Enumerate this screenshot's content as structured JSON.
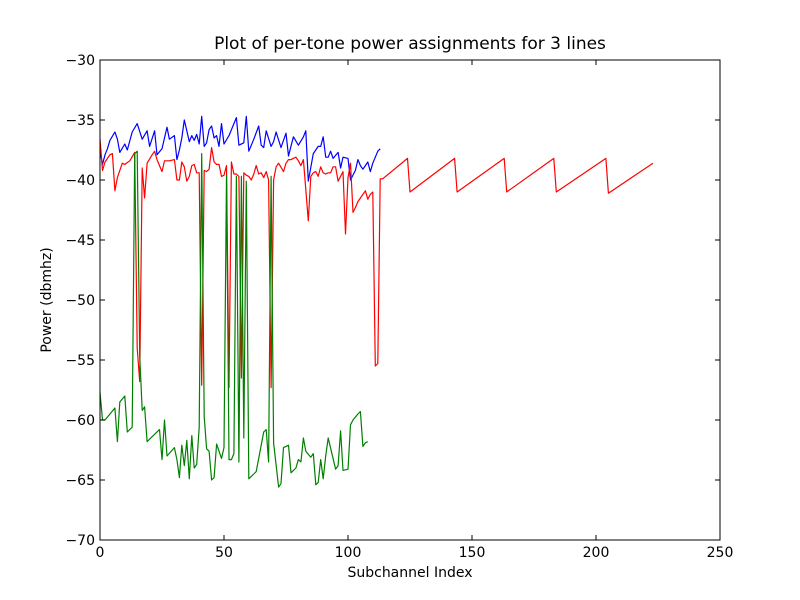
{
  "chart_data": {
    "type": "line",
    "title": "Plot of per-tone power assignments for 3 lines",
    "xlabel": "Subchannel Index",
    "ylabel": "Power (dbmhz)",
    "xlim": [
      0,
      250
    ],
    "ylim": [
      -70,
      -30
    ],
    "xticks": [
      0,
      50,
      100,
      150,
      200,
      250
    ],
    "xtick_labels": [
      "0",
      "50",
      "100",
      "150",
      "200",
      "250"
    ],
    "yticks": [
      -30,
      -35,
      -40,
      -45,
      -50,
      -55,
      -60,
      -65,
      -70
    ],
    "ytick_labels": [
      "−30",
      "−35",
      "−40",
      "−45",
      "−50",
      "−55",
      "−60",
      "−65",
      "−70"
    ],
    "grid": false,
    "legend": false,
    "series": [
      {
        "color": "#0000ff",
        "points": [
          [
            0,
            -37.6
          ],
          [
            1,
            -38.7
          ],
          [
            2,
            -37.9
          ],
          [
            3,
            -37.4
          ],
          [
            4,
            -36.7
          ],
          [
            6,
            -36
          ],
          [
            7,
            -36.6
          ],
          [
            8,
            -37.7
          ],
          [
            10,
            -37
          ],
          [
            11,
            -37.5
          ],
          [
            13,
            -36
          ],
          [
            15,
            -35.3
          ],
          [
            17,
            -36.6
          ],
          [
            19,
            -35.9
          ],
          [
            20,
            -37.2
          ],
          [
            22,
            -35.9
          ],
          [
            23,
            -37.9
          ],
          [
            25,
            -37.4
          ],
          [
            27,
            -35.6
          ],
          [
            28,
            -36.6
          ],
          [
            30,
            -36.3
          ],
          [
            31,
            -38.3
          ],
          [
            32,
            -37.5
          ],
          [
            33,
            -36.5
          ],
          [
            34,
            -35
          ],
          [
            36,
            -36.8
          ],
          [
            37,
            -36.3
          ],
          [
            38,
            -36.7
          ],
          [
            39,
            -36.2
          ],
          [
            40,
            -37
          ],
          [
            41,
            -34.7
          ],
          [
            42,
            -37.2
          ],
          [
            43,
            -36.9
          ],
          [
            44,
            -35.8
          ],
          [
            45,
            -35.5
          ],
          [
            46,
            -36.5
          ],
          [
            47,
            -36.3
          ],
          [
            48,
            -37.2
          ],
          [
            49,
            -35.3
          ],
          [
            50,
            -37
          ],
          [
            52,
            -36.3
          ],
          [
            55,
            -34.8
          ],
          [
            56,
            -37.1
          ],
          [
            58,
            -36.9
          ],
          [
            59,
            -34.7
          ],
          [
            60,
            -37.6
          ],
          [
            62,
            -36.6
          ],
          [
            64,
            -35.5
          ],
          [
            65,
            -37.1
          ],
          [
            66,
            -37.3
          ],
          [
            67,
            -35.9
          ],
          [
            69,
            -37.2
          ],
          [
            70,
            -36.8
          ],
          [
            71,
            -36
          ],
          [
            73,
            -37.3
          ],
          [
            75,
            -36.1
          ],
          [
            76,
            -38
          ],
          [
            78,
            -36.4
          ],
          [
            80,
            -37.1
          ],
          [
            82,
            -36.4
          ],
          [
            83,
            -35.9
          ],
          [
            84,
            -40.1
          ],
          [
            86,
            -37.8
          ],
          [
            88,
            -37.2
          ],
          [
            89,
            -37.2
          ],
          [
            90,
            -36.4
          ],
          [
            91,
            -38.1
          ],
          [
            92,
            -38.1
          ],
          [
            93,
            -37.6
          ],
          [
            94,
            -38.2
          ],
          [
            96,
            -37.7
          ],
          [
            97,
            -39
          ],
          [
            98,
            -38.1
          ],
          [
            100,
            -38.2
          ],
          [
            101,
            -40
          ],
          [
            103,
            -39.2
          ],
          [
            104,
            -38.3
          ],
          [
            105,
            -38.8
          ],
          [
            106,
            -39.1
          ],
          [
            107,
            -38.8
          ],
          [
            108,
            -38.5
          ],
          [
            109,
            -39.3
          ],
          [
            110,
            -38.6
          ],
          [
            112,
            -37.6
          ],
          [
            113,
            -37.4
          ]
        ]
      },
      {
        "color": "#ff0000",
        "points": [
          [
            0,
            -36.6
          ],
          [
            1,
            -39.2
          ],
          [
            2,
            -38.5
          ],
          [
            4,
            -37.9
          ],
          [
            5,
            -37.8
          ],
          [
            6,
            -40.9
          ],
          [
            7,
            -39.8
          ],
          [
            9,
            -38.6
          ],
          [
            10,
            -38.7
          ],
          [
            12,
            -38.4
          ],
          [
            14,
            -37.7
          ],
          [
            15,
            -54
          ],
          [
            16,
            -56.8
          ],
          [
            17,
            -39
          ],
          [
            18,
            -41.5
          ],
          [
            19,
            -38.6
          ],
          [
            21,
            -37.9
          ],
          [
            22,
            -37.6
          ],
          [
            23,
            -38.3
          ],
          [
            24,
            -38.8
          ],
          [
            25,
            -39.3
          ],
          [
            26,
            -38.4
          ],
          [
            28,
            -38.4
          ],
          [
            30,
            -38.3
          ],
          [
            31,
            -40
          ],
          [
            32,
            -40
          ],
          [
            33,
            -38.5
          ],
          [
            34,
            -38.9
          ],
          [
            35,
            -40.1
          ],
          [
            36,
            -39.7
          ],
          [
            37,
            -38.8
          ],
          [
            38,
            -38.7
          ],
          [
            39,
            -39.4
          ],
          [
            40,
            -39.4
          ],
          [
            41,
            -57.1
          ],
          [
            42,
            -39.2
          ],
          [
            43,
            -39.3
          ],
          [
            44,
            -39.1
          ],
          [
            45,
            -37.3
          ],
          [
            46,
            -38.5
          ],
          [
            47,
            -38.7
          ],
          [
            48,
            -38.7
          ],
          [
            49,
            -39.7
          ],
          [
            50,
            -39.6
          ],
          [
            51,
            -38.8
          ],
          [
            52,
            -57.3
          ],
          [
            53,
            -38.5
          ],
          [
            54,
            -39.5
          ],
          [
            55,
            -39.5
          ],
          [
            56,
            -39.7
          ],
          [
            57,
            -56.5
          ],
          [
            58,
            -39.4
          ],
          [
            59,
            -39.6
          ],
          [
            60,
            -39.7
          ],
          [
            61,
            -40
          ],
          [
            62,
            -39.5
          ],
          [
            63,
            -38.8
          ],
          [
            64,
            -39.5
          ],
          [
            65,
            -39.4
          ],
          [
            66,
            -39.8
          ],
          [
            67,
            -39.3
          ],
          [
            68,
            -40
          ],
          [
            69,
            -57.3
          ],
          [
            70,
            -40
          ],
          [
            71,
            -38.9
          ],
          [
            72,
            -38.6
          ],
          [
            74,
            -39.3
          ],
          [
            75,
            -38.6
          ],
          [
            76,
            -38.3
          ],
          [
            77,
            -38.3
          ],
          [
            79,
            -38.1
          ],
          [
            80,
            -38.4
          ],
          [
            81,
            -38.8
          ],
          [
            82,
            -38.3
          ],
          [
            84,
            -43.4
          ],
          [
            85,
            -39.7
          ],
          [
            86,
            -39.4
          ],
          [
            87,
            -39.3
          ],
          [
            88,
            -39.7
          ],
          [
            89,
            -38.9
          ],
          [
            90,
            -39.4
          ],
          [
            91,
            -39.5
          ],
          [
            92,
            -39.4
          ],
          [
            93,
            -39.4
          ],
          [
            94,
            -38.9
          ],
          [
            95,
            -38.9
          ],
          [
            96,
            -40.1
          ],
          [
            98,
            -39.3
          ],
          [
            99,
            -44.5
          ],
          [
            100,
            -39.8
          ],
          [
            101,
            -38.6
          ],
          [
            102,
            -42.7
          ],
          [
            103,
            -42.3
          ],
          [
            104,
            -41.8
          ],
          [
            106,
            -41.2
          ],
          [
            107,
            -40.9
          ],
          [
            108,
            -41.6
          ],
          [
            109,
            -41.2
          ],
          [
            110,
            -41
          ],
          [
            111,
            -55.5
          ],
          [
            112,
            -55.3
          ],
          [
            113,
            -39.9
          ],
          [
            114,
            -39.9
          ],
          [
            124,
            -38.2
          ],
          [
            125,
            -41
          ],
          [
            143,
            -38.2
          ],
          [
            144,
            -41
          ],
          [
            163,
            -38.2
          ],
          [
            164,
            -41
          ],
          [
            183,
            -38.2
          ],
          [
            184,
            -41
          ],
          [
            204,
            -38.2
          ],
          [
            205,
            -41.1
          ],
          [
            223,
            -38.6
          ]
        ]
      },
      {
        "color": "#008000",
        "points": [
          [
            0,
            -57.7
          ],
          [
            1,
            -60
          ],
          [
            2,
            -60
          ],
          [
            6,
            -59
          ],
          [
            7,
            -61.8
          ],
          [
            8,
            -58.5
          ],
          [
            10,
            -58
          ],
          [
            11,
            -61
          ],
          [
            13,
            -60.6
          ],
          [
            14,
            -37.8
          ],
          [
            15,
            -37.6
          ],
          [
            16,
            -54.6
          ],
          [
            17,
            -59.2
          ],
          [
            18,
            -58.9
          ],
          [
            19,
            -61.8
          ],
          [
            24,
            -60.8
          ],
          [
            25,
            -63.3
          ],
          [
            26,
            -60
          ],
          [
            27,
            -63
          ],
          [
            30,
            -62.3
          ],
          [
            31,
            -63.3
          ],
          [
            32,
            -64.8
          ],
          [
            33,
            -62.1
          ],
          [
            34,
            -63.8
          ],
          [
            35,
            -61.7
          ],
          [
            36,
            -64.9
          ],
          [
            37,
            -61.3
          ],
          [
            38,
            -64
          ],
          [
            39,
            -63.7
          ],
          [
            40,
            -60.6
          ],
          [
            41,
            -37.8
          ],
          [
            42,
            -59.7
          ],
          [
            43,
            -62.4
          ],
          [
            44,
            -62.6
          ],
          [
            45,
            -65
          ],
          [
            46,
            -64.8
          ],
          [
            47,
            -62
          ],
          [
            49,
            -63.2
          ],
          [
            50,
            -62.3
          ],
          [
            51,
            -39.6
          ],
          [
            52,
            -63.3
          ],
          [
            53,
            -63.3
          ],
          [
            54,
            -62.8
          ],
          [
            55,
            -39.7
          ],
          [
            56,
            -63.5
          ],
          [
            57,
            -39.7
          ],
          [
            58,
            -61.5
          ],
          [
            59,
            -40.1
          ],
          [
            60,
            -64.9
          ],
          [
            62,
            -64.5
          ],
          [
            63,
            -64.3
          ],
          [
            64,
            -63.2
          ],
          [
            66,
            -61
          ],
          [
            67,
            -60.8
          ],
          [
            68,
            -63.5
          ],
          [
            69,
            -39.7
          ],
          [
            70,
            -61.9
          ],
          [
            72,
            -65.6
          ],
          [
            73,
            -65.3
          ],
          [
            74,
            -62.3
          ],
          [
            75,
            -62.2
          ],
          [
            76,
            -62.1
          ],
          [
            77,
            -64.4
          ],
          [
            79,
            -64
          ],
          [
            80,
            -63.3
          ],
          [
            81,
            -63.5
          ],
          [
            82,
            -61.5
          ],
          [
            83,
            -62.6
          ],
          [
            85,
            -63.1
          ],
          [
            86,
            -62.8
          ],
          [
            87,
            -65.4
          ],
          [
            88,
            -65.2
          ],
          [
            89,
            -63.3
          ],
          [
            90,
            -64.9
          ],
          [
            91,
            -63
          ],
          [
            92,
            -61.5
          ],
          [
            95,
            -64.1
          ],
          [
            96,
            -63.8
          ],
          [
            97,
            -60.9
          ],
          [
            98,
            -64.2
          ],
          [
            100,
            -64.1
          ],
          [
            101,
            -60.4
          ],
          [
            102,
            -60
          ],
          [
            104,
            -59.5
          ],
          [
            105,
            -59.3
          ],
          [
            106,
            -62.2
          ],
          [
            107,
            -61.9
          ],
          [
            108,
            -61.8
          ]
        ]
      }
    ]
  }
}
